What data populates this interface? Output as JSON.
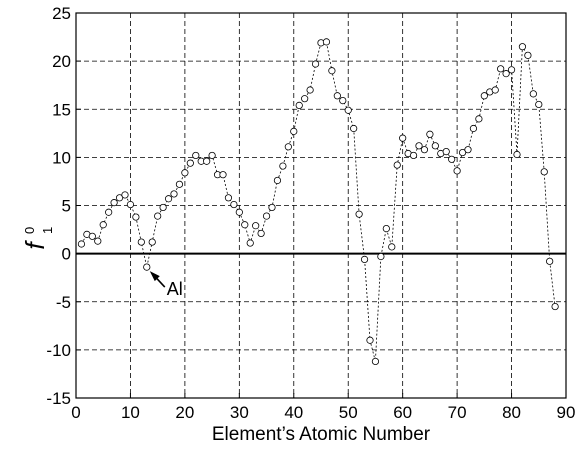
{
  "chart_data": {
    "type": "line",
    "xlabel": "Element’s Atomic Number",
    "ylabel": {
      "main": "f",
      "superscript": "0",
      "subscript": "1"
    },
    "xlim": [
      0,
      90
    ],
    "ylim": [
      -15,
      25
    ],
    "xticks": [
      0,
      10,
      20,
      30,
      40,
      50,
      60,
      70,
      80,
      90
    ],
    "yticks": [
      -15,
      -10,
      -5,
      0,
      5,
      10,
      15,
      20,
      25
    ],
    "grid": true,
    "zero_line": true,
    "series": [
      {
        "x": [
          1,
          2,
          3,
          4,
          5,
          6,
          7,
          8,
          9,
          10,
          11,
          12,
          13,
          14,
          15,
          16,
          17,
          18,
          19,
          20,
          21,
          22,
          23,
          24,
          25,
          26,
          27,
          28,
          29,
          30,
          31,
          32,
          33,
          34,
          35,
          36,
          37,
          38,
          39,
          40,
          41,
          42,
          43,
          44,
          45,
          46,
          47,
          48,
          49,
          50,
          51,
          52,
          53,
          54,
          55,
          56,
          57,
          58,
          59,
          60,
          61,
          62,
          63,
          64,
          65,
          66,
          67,
          68,
          69,
          70,
          71,
          72,
          73,
          74,
          75,
          76,
          77,
          78,
          79,
          80,
          81,
          82,
          83,
          84,
          85,
          86,
          87,
          88
        ],
        "y": [
          1.0,
          2.0,
          1.8,
          1.3,
          3.0,
          4.3,
          5.3,
          5.8,
          6.1,
          5.1,
          3.8,
          1.2,
          -1.4,
          1.2,
          3.9,
          4.8,
          5.7,
          6.2,
          7.2,
          8.4,
          9.4,
          10.2,
          9.6,
          9.6,
          10.2,
          8.2,
          8.2,
          5.8,
          5.1,
          4.3,
          3.0,
          1.1,
          2.9,
          2.1,
          3.9,
          4.8,
          7.6,
          9.1,
          11.1,
          12.7,
          15.4,
          16.1,
          17.0,
          19.7,
          21.9,
          22.0,
          19.0,
          16.4,
          15.9,
          14.9,
          13.0,
          4.1,
          -0.6,
          -9.0,
          -11.2,
          -0.3,
          2.6,
          0.7,
          9.2,
          12.0,
          10.4,
          10.2,
          11.2,
          10.8,
          12.4,
          11.2,
          10.4,
          10.6,
          9.8,
          8.6,
          10.5,
          10.8,
          13.0,
          14.0,
          16.4,
          16.8,
          17.0,
          19.2,
          18.7,
          19.1,
          10.3,
          21.5,
          20.6,
          16.6,
          15.5,
          8.5,
          -0.8,
          -5.5
        ]
      }
    ],
    "annotations": [
      {
        "text": "Al",
        "x": 13,
        "y": -1.4
      }
    ]
  }
}
